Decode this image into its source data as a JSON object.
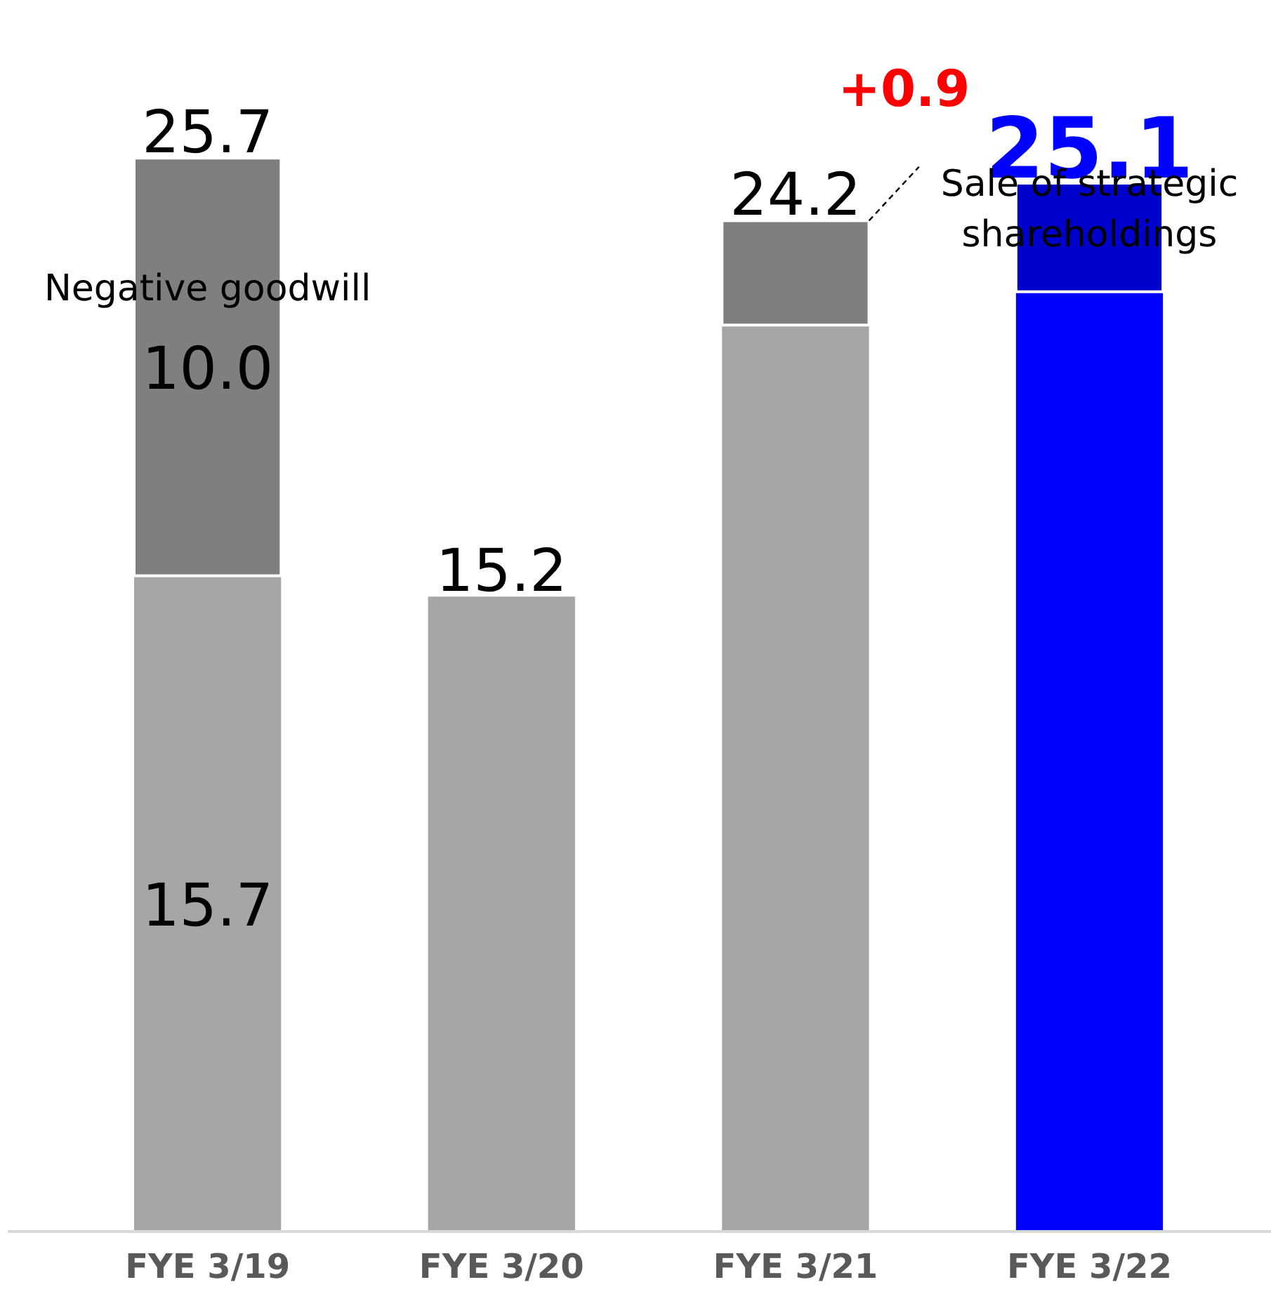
{
  "chart_data": {
    "type": "bar",
    "stacked": true,
    "categories": [
      "FYE 3/19",
      "FYE 3/20",
      "FYE 3/21",
      "FYE 3/22"
    ],
    "series": [
      {
        "colors": [
          "#a6a6a6",
          "#a6a6a6",
          "#a6a6a6",
          "#0000ff"
        ],
        "values": [
          15.7,
          15.2,
          21.7,
          22.5
        ],
        "value_labels": [
          "15.7",
          null,
          null,
          null
        ]
      },
      {
        "colors": [
          "#7f7f7f",
          "#7f7f7f",
          "#7f7f7f",
          "#0000cc"
        ],
        "values": [
          10.0,
          null,
          2.5,
          2.6
        ],
        "value_labels": [
          "10.0",
          null,
          null,
          null
        ]
      }
    ],
    "totals": [
      "25.7",
      "15.2",
      "24.2",
      "25.1"
    ],
    "annotations": [
      "Negative goodwill",
      "Sale of strategic\nshareholdings",
      "+0.9"
    ],
    "grid": false
  }
}
